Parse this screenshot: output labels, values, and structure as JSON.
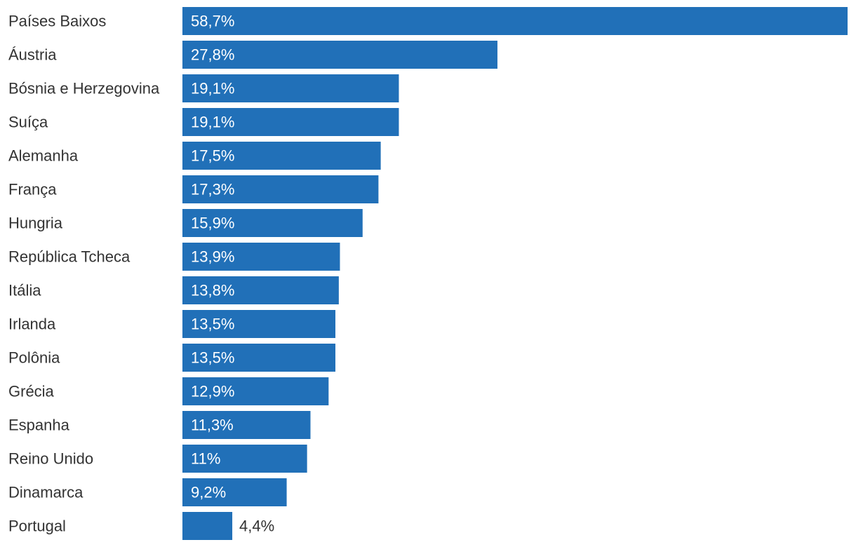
{
  "chart_data": {
    "type": "bar",
    "orientation": "horizontal",
    "title": "",
    "xlabel": "",
    "ylabel": "",
    "grid": false,
    "legend": "none",
    "xlim": [
      0,
      58.7
    ],
    "colors": {
      "bar": "#2170b8",
      "label_inside": "#ffffff",
      "label_outside": "#333333",
      "category_text": "#333333"
    },
    "categories": [
      "Países Baixos",
      "Áustria",
      "Bósnia e Herzegovina",
      "Suíça",
      "Alemanha",
      "França",
      "Hungria",
      "República Tcheca",
      "Itália",
      "Irlanda",
      "Polônia",
      "Grécia",
      "Espanha",
      "Reino Unido",
      "Dinamarca",
      "Portugal"
    ],
    "values": [
      58.7,
      27.8,
      19.1,
      19.1,
      17.5,
      17.3,
      15.9,
      13.9,
      13.8,
      13.5,
      13.5,
      12.9,
      11.3,
      11,
      9.2,
      4.4
    ],
    "value_labels": [
      "58,7%",
      "27,8%",
      "19,1%",
      "19,1%",
      "17,5%",
      "17,3%",
      "15,9%",
      "13,9%",
      "13,8%",
      "13,5%",
      "13,5%",
      "12,9%",
      "11,3%",
      "11%",
      "9,2%",
      "4,4%"
    ]
  }
}
